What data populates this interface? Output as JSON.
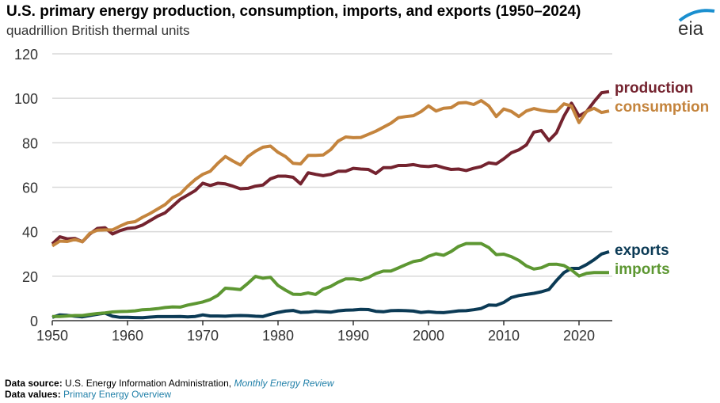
{
  "chart_data": {
    "type": "line",
    "title": "U.S. primary energy production, consumption, imports, and exports (1950–2024)",
    "subtitle": "quadrillion British thermal units",
    "xlabel": "",
    "ylabel": "",
    "xlim": [
      1950,
      2024
    ],
    "ylim": [
      0,
      120
    ],
    "xticks": [
      "1950",
      "1960",
      "1970",
      "1980",
      "1990",
      "2000",
      "2010",
      "2020"
    ],
    "yticks": [
      "0",
      "20",
      "40",
      "60",
      "80",
      "100",
      "120"
    ],
    "grid": true,
    "legend": "direct labels at right end of lines",
    "x": [
      1950,
      1951,
      1952,
      1953,
      1954,
      1955,
      1956,
      1957,
      1958,
      1959,
      1960,
      1961,
      1962,
      1963,
      1964,
      1965,
      1966,
      1967,
      1968,
      1969,
      1970,
      1971,
      1972,
      1973,
      1974,
      1975,
      1976,
      1977,
      1978,
      1979,
      1980,
      1981,
      1982,
      1983,
      1984,
      1985,
      1986,
      1987,
      1988,
      1989,
      1990,
      1991,
      1992,
      1993,
      1994,
      1995,
      1996,
      1997,
      1998,
      1999,
      2000,
      2001,
      2002,
      2003,
      2004,
      2005,
      2006,
      2007,
      2008,
      2009,
      2010,
      2011,
      2012,
      2013,
      2014,
      2015,
      2016,
      2017,
      2018,
      2019,
      2020,
      2021,
      2022,
      2023,
      2024
    ],
    "series": [
      {
        "name": "production",
        "color": "#74232f",
        "values": [
          34.5,
          37.7,
          36.8,
          37,
          35.5,
          39,
          41.5,
          41.8,
          39,
          40.5,
          41.5,
          41.8,
          43,
          45,
          47,
          48.5,
          51.5,
          54.5,
          56.5,
          58.5,
          61.8,
          60.8,
          61.8,
          61.5,
          60.5,
          59.3,
          59.5,
          60.5,
          61,
          63.8,
          65,
          65,
          64.5,
          61.5,
          66.5,
          65.8,
          65.2,
          65.8,
          67.2,
          67.2,
          68.5,
          68.2,
          68,
          66.2,
          68.8,
          68.8,
          69.8,
          69.8,
          70.2,
          69.5,
          69.3,
          69.8,
          68.8,
          68,
          68.2,
          67.5,
          68.5,
          69.3,
          71,
          70.5,
          72.8,
          75.5,
          76.8,
          79,
          84.8,
          85.5,
          81,
          84.5,
          92,
          97.8,
          92,
          94,
          98.5,
          102.5,
          103
        ]
      },
      {
        "name": "consumption",
        "color": "#c4843d",
        "values": [
          33.6,
          35.8,
          35.6,
          36.5,
          35.5,
          39.3,
          40.7,
          40.8,
          40.8,
          42.5,
          44,
          44.5,
          46.5,
          48.2,
          50.2,
          52.2,
          55.3,
          57,
          60.5,
          63.5,
          65.8,
          67.2,
          70.8,
          73.8,
          71.8,
          70,
          73.8,
          76.2,
          78,
          78.5,
          75.7,
          73.8,
          70.8,
          70.5,
          74.3,
          74.3,
          74.5,
          76.9,
          80.8,
          82.6,
          82.3,
          82.4,
          83.8,
          85.2,
          87,
          88.8,
          91.3,
          91.8,
          92.2,
          94,
          96.6,
          94.3,
          95.5,
          95.8,
          97.9,
          98.1,
          97.2,
          99,
          96.6,
          91.8,
          95.2,
          94.1,
          91.8,
          94.3,
          95.4,
          94.6,
          94.1,
          94.1,
          97.5,
          96.5,
          89.1,
          94.1,
          95.5,
          93.6,
          94.3
        ]
      },
      {
        "name": "exports",
        "color": "#0b3a55",
        "values": [
          1.5,
          2.6,
          2.4,
          2.0,
          1.7,
          2.3,
          2.9,
          3.4,
          2.0,
          1.5,
          1.5,
          1.4,
          1.3,
          1.6,
          1.8,
          1.8,
          1.8,
          1.9,
          1.7,
          1.9,
          2.6,
          2.1,
          2.1,
          2.0,
          2.2,
          2.3,
          2.2,
          2.0,
          1.9,
          2.9,
          3.7,
          4.3,
          4.6,
          3.7,
          3.8,
          4.2,
          4.0,
          3.8,
          4.4,
          4.7,
          4.8,
          5.1,
          5.0,
          4.2,
          4.0,
          4.5,
          4.6,
          4.5,
          4.3,
          3.7,
          4.0,
          3.7,
          3.6,
          4.0,
          4.4,
          4.5,
          4.9,
          5.5,
          7.0,
          6.9,
          8.2,
          10.4,
          11.3,
          11.8,
          12.3,
          13.0,
          14.0,
          18.0,
          21.6,
          23.5,
          23.5,
          25.2,
          27.4,
          30.0,
          31.0
        ]
      },
      {
        "name": "imports",
        "color": "#5d9732",
        "values": [
          1.9,
          1.9,
          2.1,
          2.3,
          2.3,
          2.8,
          3.2,
          3.5,
          3.9,
          4.1,
          4.2,
          4.4,
          4.9,
          5.1,
          5.4,
          5.9,
          6.2,
          6.1,
          7.0,
          7.7,
          8.4,
          9.5,
          11.4,
          14.6,
          14.3,
          14.0,
          16.8,
          19.9,
          19.1,
          19.5,
          15.8,
          13.7,
          11.9,
          11.8,
          12.5,
          11.8,
          14.2,
          15.4,
          17.3,
          18.8,
          18.8,
          18.3,
          19.4,
          21.2,
          22.3,
          22.3,
          23.7,
          25.2,
          26.6,
          27.2,
          29.0,
          30.1,
          29.4,
          31.1,
          33.4,
          34.7,
          34.7,
          34.7,
          32.9,
          29.7,
          29.9,
          28.8,
          27.1,
          24.6,
          23.2,
          23.8,
          25.3,
          25.4,
          24.8,
          22.8,
          20.1,
          21.3,
          21.6,
          21.6,
          21.6
        ]
      }
    ]
  },
  "logo": {
    "text": "eia",
    "arc_color": "#1a8fcf",
    "text_color": "#333333"
  },
  "footer": {
    "source_label": "Data source:",
    "source_text": "U.S. Energy Information Administration,",
    "source_link": "Monthly Energy Review",
    "values_label": "Data values:",
    "values_link": "Primary Energy Overview"
  }
}
